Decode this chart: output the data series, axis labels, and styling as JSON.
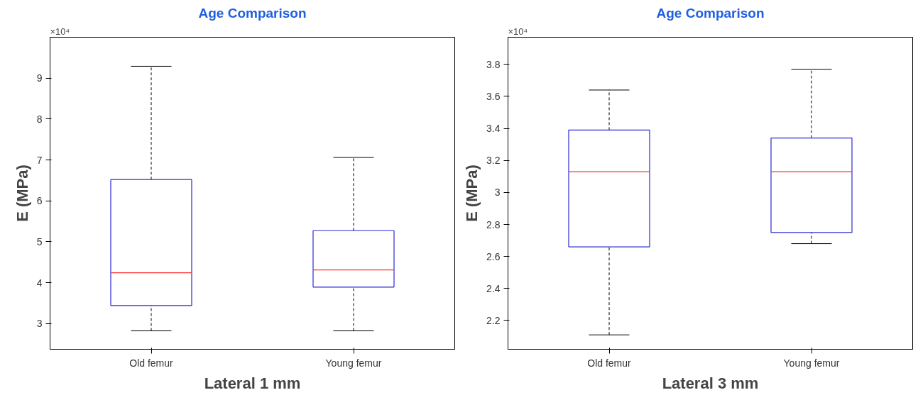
{
  "chart_data": [
    {
      "type": "box",
      "title": "Age Comparison",
      "xlabel": "Lateral 1 mm",
      "ylabel": "E (MPa)",
      "categories": [
        "Old femur",
        "Young femur"
      ],
      "series": [
        {
          "color": "#2b2bd6",
          "boxes": [
            {
              "low": 2.82,
              "q1": 3.44,
              "median": 4.24,
              "q3": 6.52,
              "high": 9.29
            },
            {
              "low": 2.82,
              "q1": 3.89,
              "median": 4.31,
              "q3": 5.27,
              "high": 7.06
            }
          ]
        }
      ],
      "ylim": [
        2.37,
        10.0
      ],
      "yticks": [
        3,
        4,
        5,
        6,
        7,
        8,
        9
      ],
      "annotations": [
        "×10⁴"
      ],
      "grid": false
    },
    {
      "type": "box",
      "title": "Age Comparison",
      "xlabel": "Lateral 3 mm",
      "ylabel": "E (MPa)",
      "categories": [
        "Old femur",
        "Young femur"
      ],
      "series": [
        {
          "color": "#2b2bd6",
          "boxes": [
            {
              "low": 2.11,
              "q1": 2.66,
              "median": 3.13,
              "q3": 3.39,
              "high": 3.64
            },
            {
              "low": 2.68,
              "q1": 2.75,
              "median": 3.13,
              "q3": 3.34,
              "high": 3.77
            }
          ]
        }
      ],
      "ylim": [
        2.02,
        3.97
      ],
      "yticks": [
        2.2,
        2.4,
        2.6,
        2.8,
        {
          "value": 3.0,
          "label": "3"
        },
        3.2,
        3.4,
        3.6,
        3.8
      ],
      "annotations": [
        "×10⁴"
      ],
      "grid": false
    }
  ]
}
